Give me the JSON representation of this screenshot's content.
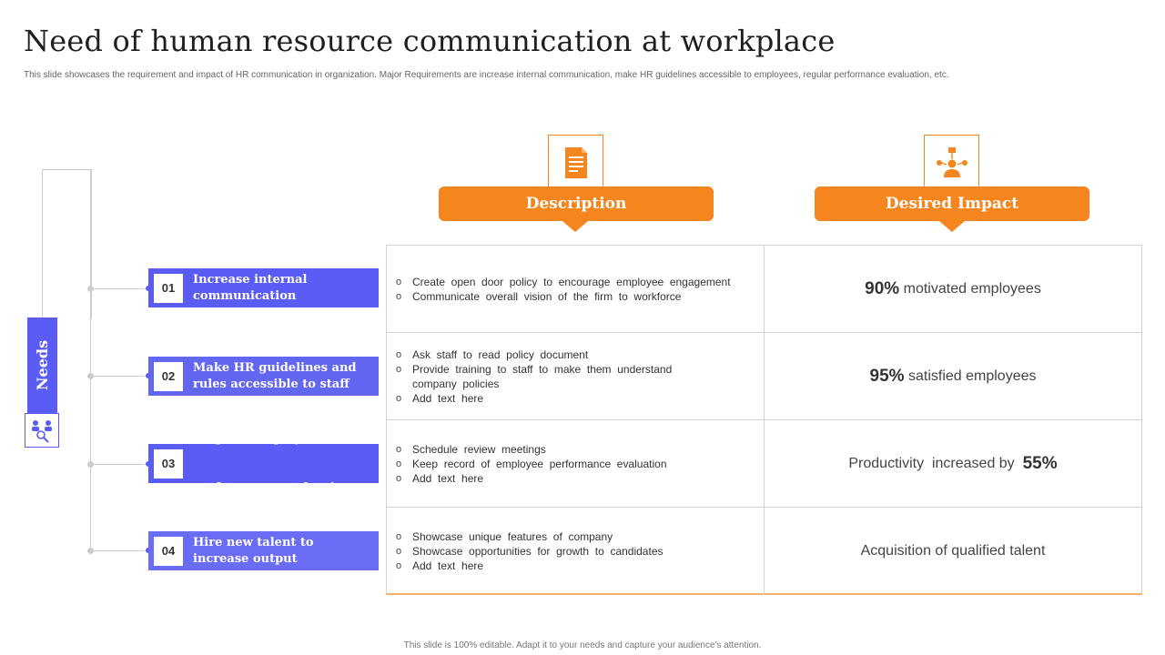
{
  "title": "Need of human resource communication at workplace",
  "subtitle": "This slide showcases the requirement and impact of HR communication in organization. Major Requirements are increase internal communication, make  HR guidelines accessible to employees, regular performance evaluation, etc.",
  "footer": "This slide is 100% editable. Adapt it to your needs and capture your audience's attention.",
  "sidebar": {
    "label": "Needs",
    "icon": "people-search-icon"
  },
  "headers": {
    "description": {
      "label": "Description",
      "icon": "document-icon"
    },
    "impact": {
      "label": "Desired Impact",
      "icon": "network-person-icon"
    }
  },
  "needs": [
    {
      "num": "01",
      "line1": "Increase internal",
      "line2": "communication",
      "color": "#5b5cf6"
    },
    {
      "num": "02",
      "line1": "Make HR guidelines and",
      "line2": "rules accessible to staff",
      "color": "#6366f1"
    },
    {
      "num": "03",
      "line1": " Regular employee",
      "line2": "performance evaluation",
      "color": "#5b5cf6"
    },
    {
      "num": "04",
      "line1": "Hire new talent to",
      "line2": "increase output",
      "color": "#6b6cf6"
    }
  ],
  "rows": [
    {
      "bullets": [
        "Create  open  door  policy  to  encourage  employee  engagement",
        "Communicate  overall  vision  of  the  firm  to  workforce"
      ],
      "impact_bold": "90%",
      "impact_text": " motivated employees"
    },
    {
      "bullets": [
        "Ask  staff  to  read  policy  document",
        "Provide  training  to  staff  to  make  them  understand",
        "company  policies",
        "Add  text  here"
      ],
      "impact_bold": "95%",
      "impact_text": " satisfied employees"
    },
    {
      "bullets": [
        "Schedule  review  meetings",
        "Keep  record  of  employee  performance  evaluation",
        "Add  text  here"
      ],
      "impact_text_pre": "Productivity  increased by  ",
      "impact_bold": "55%"
    },
    {
      "bullets": [
        "Showcase  unique  features  of  company",
        "Showcase  opportunities  for  growth  to  candidates",
        "Add  text  here"
      ],
      "impact_text": "Acquisition of qualified talent"
    }
  ]
}
